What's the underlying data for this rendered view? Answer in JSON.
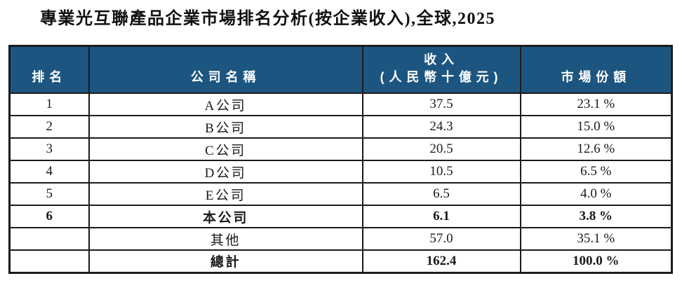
{
  "title": "專業光互聯產品企業市場排名分析(按企業收入),全球,2025",
  "colors": {
    "header_bg": "#1C5680",
    "header_text": "#FFFFFF",
    "border": "#1B1B1B",
    "body_text": "#1A1A1A"
  },
  "table": {
    "header": {
      "rank": "排名",
      "company": "公司名稱",
      "revenue_line1": "收入",
      "revenue_line2": "(人民幣十億元)",
      "share": "市場份額"
    },
    "rows": [
      {
        "rank": "1",
        "company": "A公司",
        "revenue": "37.5",
        "share": "23.1 %",
        "bold": false
      },
      {
        "rank": "2",
        "company": "B公司",
        "revenue": "24.3",
        "share": "15.0 %",
        "bold": false
      },
      {
        "rank": "3",
        "company": "C公司",
        "revenue": "20.5",
        "share": "12.6 %",
        "bold": false
      },
      {
        "rank": "4",
        "company": "D公司",
        "revenue": "10.5",
        "share": "6.5 %",
        "bold": false
      },
      {
        "rank": "5",
        "company": "E公司",
        "revenue": "6.5",
        "share": "4.0 %",
        "bold": false
      },
      {
        "rank": "6",
        "company": "本公司",
        "revenue": "6.1",
        "share": "3.8 %",
        "bold": true
      },
      {
        "rank": "",
        "company": "其他",
        "revenue": "57.0",
        "share": "35.1 %",
        "bold": false
      },
      {
        "rank": "",
        "company": "總計",
        "revenue": "162.4",
        "share": "100.0 %",
        "bold": true
      }
    ]
  }
}
